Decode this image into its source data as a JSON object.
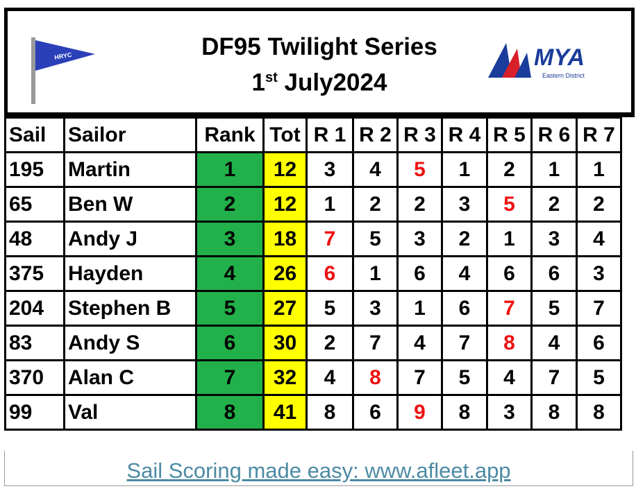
{
  "header": {
    "title": "DF95 Twilight Series",
    "date": {
      "day": "1",
      "suffix": "st",
      "rest": "July2024"
    },
    "club_logo": "HRYC",
    "mya_logo": {
      "name": "MYA",
      "sub": "Eastern District"
    }
  },
  "table": {
    "columns": [
      "Sail",
      "Sailor",
      "Rank",
      "Tot",
      "R 1",
      "R 2",
      "R 3",
      "R 4",
      "R 5",
      "R 6",
      "R 7"
    ],
    "rank_color": "#22b04a",
    "total_color": "#ffff00",
    "discard_color": "#ee1111",
    "rows": [
      {
        "sail": 195,
        "sailor": "Martin",
        "rank": 1,
        "total": 12,
        "races": [
          3,
          4,
          5,
          1,
          2,
          1,
          1
        ],
        "discard": 2
      },
      {
        "sail": 65,
        "sailor": "Ben W",
        "rank": 2,
        "total": 12,
        "races": [
          1,
          2,
          2,
          3,
          5,
          2,
          2
        ],
        "discard": 4
      },
      {
        "sail": 48,
        "sailor": "Andy J",
        "rank": 3,
        "total": 18,
        "races": [
          7,
          5,
          3,
          2,
          1,
          3,
          4
        ],
        "discard": 0
      },
      {
        "sail": 375,
        "sailor": "Hayden",
        "rank": 4,
        "total": 26,
        "races": [
          6,
          1,
          6,
          4,
          6,
          6,
          3
        ],
        "discard": 0
      },
      {
        "sail": 204,
        "sailor": "Stephen B",
        "rank": 5,
        "total": 27,
        "races": [
          5,
          3,
          1,
          6,
          7,
          5,
          7
        ],
        "discard": 4
      },
      {
        "sail": 83,
        "sailor": "Andy S",
        "rank": 6,
        "total": 30,
        "races": [
          2,
          7,
          4,
          7,
          8,
          4,
          6
        ],
        "discard": 4
      },
      {
        "sail": 370,
        "sailor": "Alan C",
        "rank": 7,
        "total": 32,
        "races": [
          4,
          8,
          7,
          5,
          4,
          7,
          5
        ],
        "discard": 1
      },
      {
        "sail": 99,
        "sailor": "Val",
        "rank": 8,
        "total": 41,
        "races": [
          8,
          6,
          9,
          8,
          3,
          8,
          8
        ],
        "discard": 2
      }
    ]
  },
  "footer": {
    "link": "Sail Scoring made easy: www.afleet.app"
  }
}
